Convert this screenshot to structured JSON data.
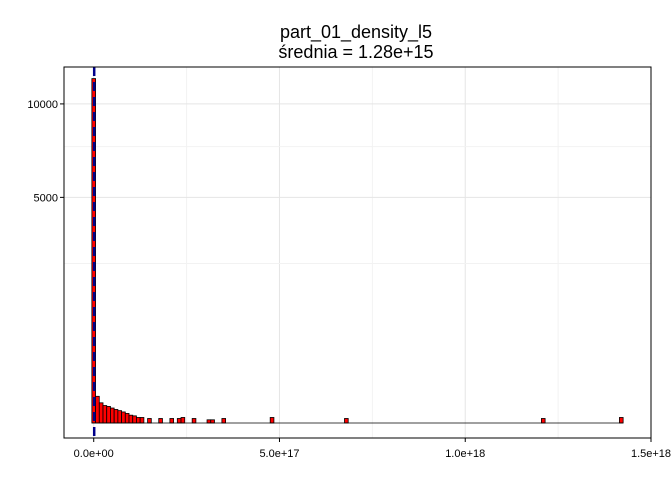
{
  "chart_data": {
    "type": "bar",
    "title": "part_01_density_l5",
    "subtitle": "średnia = 1.28e+15",
    "xlabel": "",
    "ylabel": "",
    "xlim": [
      -8e+16,
      1.5e+18
    ],
    "ylim": [
      0,
      12100
    ],
    "y_scale": "sqrt",
    "x_ticks": [
      {
        "value": 0,
        "label": "0.0e+00"
      },
      {
        "value": 5e+17,
        "label": "5.0e+17"
      },
      {
        "value": 1e+18,
        "label": "1.0e+18"
      },
      {
        "value": 1.5e+18,
        "label": "1.5e+18"
      }
    ],
    "y_ticks": [
      {
        "value": 5000,
        "label": "5000"
      },
      {
        "value": 10000,
        "label": "10000"
      }
    ],
    "grid": true,
    "bar_fill": "#ff0000",
    "bar_edge": "#000000",
    "mean_line": {
      "value": 1280000000000000.0,
      "color": "#00008b",
      "dash": true
    },
    "bins": [
      {
        "x": 0.0,
        "count": 11650
      },
      {
        "x": 1e+16,
        "count": 70
      },
      {
        "x": 2e+16,
        "count": 40
      },
      {
        "x": 3e+16,
        "count": 30
      },
      {
        "x": 4e+16,
        "count": 27
      },
      {
        "x": 5e+16,
        "count": 22
      },
      {
        "x": 6e+16,
        "count": 18
      },
      {
        "x": 7e+16,
        "count": 15
      },
      {
        "x": 8e+16,
        "count": 12
      },
      {
        "x": 9e+16,
        "count": 9
      },
      {
        "x": 1e+17,
        "count": 6
      },
      {
        "x": 1.1e+17,
        "count": 5
      },
      {
        "x": 1.2e+17,
        "count": 3
      },
      {
        "x": 1.3e+17,
        "count": 3
      },
      {
        "x": 1.5e+17,
        "count": 2
      },
      {
        "x": 1.8e+17,
        "count": 2
      },
      {
        "x": 2.1e+17,
        "count": 2
      },
      {
        "x": 2.3e+17,
        "count": 2
      },
      {
        "x": 2.4e+17,
        "count": 3
      },
      {
        "x": 2.7e+17,
        "count": 2
      },
      {
        "x": 3.1e+17,
        "count": 1
      },
      {
        "x": 3.2e+17,
        "count": 1
      },
      {
        "x": 3.5e+17,
        "count": 2
      },
      {
        "x": 4.8e+17,
        "count": 3
      },
      {
        "x": 6.8e+17,
        "count": 2
      },
      {
        "x": 1.21e+18,
        "count": 2
      },
      {
        "x": 1.42e+18,
        "count": 3
      }
    ],
    "bin_width": 1e+16
  }
}
